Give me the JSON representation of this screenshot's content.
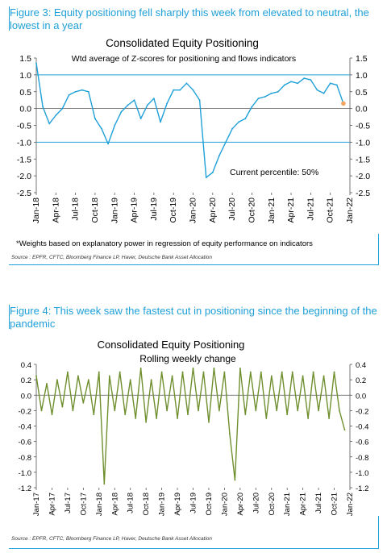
{
  "figure3": {
    "title": "Figure 3: Equity positioning fell sharply this week from elevated to neutral, the lowest in a year",
    "note": "*Weights based on explanatory power in regression of equity performance on indicators",
    "source": "Source : EPFR, CFTC, Bloomberg Finance LP, Haver, Deutsche Bank Asset Allocation"
  },
  "figure4": {
    "title": "Figure 4: This week saw the fastest cut in positioning since the beginning of the pandemic",
    "source": "Source : EPFR, CFTC, Bloomberg Finance LP, Haver, Deutsche Bank Asset Allocation"
  },
  "chart_data": [
    {
      "type": "line",
      "title": "Consolidated Equity Positioning",
      "subtitle": "Wtd average of Z-scores for positioning and flows indicators",
      "annotation": "Current percentile: 50%",
      "ylim": [
        -2.5,
        1.5
      ],
      "yticks": [
        1.5,
        1.0,
        0.5,
        0.0,
        -0.5,
        -1.0,
        -1.5,
        -2.0,
        -2.5
      ],
      "ytick_labels": [
        "1.5",
        "1.0",
        "0.5",
        "0.0",
        "-0.5",
        "-1.0",
        "-1.5",
        "-2.0",
        "-2.5"
      ],
      "reference_lines": [
        1.0,
        -1.0
      ],
      "xlim": [
        "2018-01",
        "2022-01"
      ],
      "xtick_labels": [
        "Jan-18",
        "Apr-18",
        "Jul-18",
        "Oct-18",
        "Jan-19",
        "Apr-19",
        "Jul-19",
        "Oct-19",
        "Jan-20",
        "Apr-20",
        "Jul-20",
        "Oct-20",
        "Jan-21",
        "Apr-21",
        "Jul-21",
        "Oct-21",
        "Jan-22"
      ],
      "line_color": "#1fa0d8",
      "marker_color": "#f4a460",
      "grid": false,
      "series": [
        {
          "x": [
            "2018-01",
            "2018-02",
            "2018-03",
            "2018-04",
            "2018-05",
            "2018-06",
            "2018-07",
            "2018-08",
            "2018-09",
            "2018-10",
            "2018-11",
            "2018-12",
            "2019-01",
            "2019-02",
            "2019-03",
            "2019-04",
            "2019-05",
            "2019-06",
            "2019-07",
            "2019-08",
            "2019-09",
            "2019-10",
            "2019-11",
            "2019-12",
            "2020-01",
            "2020-02",
            "2020-03",
            "2020-04",
            "2020-05",
            "2020-06",
            "2020-07",
            "2020-08",
            "2020-09",
            "2020-10",
            "2020-11",
            "2020-12",
            "2021-01",
            "2021-02",
            "2021-03",
            "2021-04",
            "2021-05",
            "2021-06",
            "2021-07",
            "2021-08",
            "2021-09",
            "2021-10",
            "2021-11",
            "2021-12"
          ],
          "values": [
            1.35,
            0.05,
            -0.45,
            -0.2,
            0.0,
            0.4,
            0.5,
            0.55,
            0.5,
            -0.3,
            -0.6,
            -1.05,
            -0.5,
            -0.1,
            0.1,
            0.25,
            -0.3,
            0.1,
            0.3,
            -0.4,
            0.15,
            0.55,
            0.55,
            0.75,
            0.55,
            0.25,
            -2.05,
            -1.9,
            -1.4,
            -1.0,
            -0.6,
            -0.4,
            -0.3,
            0.05,
            0.3,
            0.35,
            0.45,
            0.5,
            0.7,
            0.8,
            0.75,
            0.9,
            0.85,
            0.55,
            0.45,
            0.75,
            0.7,
            0.15
          ]
        }
      ]
    },
    {
      "type": "line",
      "title": "Consolidated Equity Positioning",
      "subtitle": "Rolling weekly change",
      "ylim": [
        -1.2,
        0.4
      ],
      "yticks": [
        0.4,
        0.2,
        0.0,
        -0.2,
        -0.4,
        -0.6,
        -0.8,
        -1.0,
        -1.2
      ],
      "ytick_labels": [
        "0.4",
        "0.2",
        "0.0",
        "-0.2",
        "-0.4",
        "-0.6",
        "-0.8",
        "-1.0",
        "-1.2"
      ],
      "xlim": [
        "2017-01",
        "2022-01"
      ],
      "xtick_labels": [
        "Jan-17",
        "Apr-17",
        "Jul-17",
        "Oct-17",
        "Jan-18",
        "Apr-18",
        "Jul-18",
        "Oct-18",
        "Jan-19",
        "Apr-19",
        "Jul-19",
        "Oct-19",
        "Jan-20",
        "Apr-20",
        "Jul-20",
        "Oct-20",
        "Jan-21",
        "Apr-21",
        "Jul-21",
        "Oct-21",
        "Jan-22"
      ],
      "line_color": "#6f8f2e",
      "grid": false,
      "series": [
        {
          "x": [
            "2017-01",
            "2017-02",
            "2017-03",
            "2017-04",
            "2017-05",
            "2017-06",
            "2017-07",
            "2017-08",
            "2017-09",
            "2017-10",
            "2017-11",
            "2017-12",
            "2018-01",
            "2018-02",
            "2018-03",
            "2018-04",
            "2018-05",
            "2018-06",
            "2018-07",
            "2018-08",
            "2018-09",
            "2018-10",
            "2018-11",
            "2018-12",
            "2019-01",
            "2019-02",
            "2019-03",
            "2019-04",
            "2019-05",
            "2019-06",
            "2019-07",
            "2019-08",
            "2019-09",
            "2019-10",
            "2019-11",
            "2019-12",
            "2020-01",
            "2020-02",
            "2020-03",
            "2020-04",
            "2020-05",
            "2020-06",
            "2020-07",
            "2020-08",
            "2020-09",
            "2020-10",
            "2020-11",
            "2020-12",
            "2021-01",
            "2021-02",
            "2021-03",
            "2021-04",
            "2021-05",
            "2021-06",
            "2021-07",
            "2021-08",
            "2021-09",
            "2021-10",
            "2021-11",
            "2021-12"
          ],
          "values": [
            0.25,
            -0.2,
            0.15,
            -0.25,
            0.2,
            -0.15,
            0.3,
            -0.2,
            0.25,
            -0.1,
            0.2,
            -0.25,
            0.3,
            -1.15,
            0.25,
            -0.2,
            0.3,
            -0.25,
            0.2,
            -0.3,
            0.35,
            -0.35,
            0.2,
            -0.3,
            0.3,
            -0.2,
            0.25,
            -0.3,
            0.3,
            -0.25,
            0.35,
            -0.2,
            0.3,
            -0.35,
            0.35,
            -0.2,
            0.3,
            -0.5,
            -1.1,
            0.35,
            -0.25,
            0.3,
            -0.2,
            0.3,
            -0.3,
            0.25,
            -0.2,
            0.3,
            -0.25,
            0.3,
            -0.2,
            0.25,
            -0.3,
            0.3,
            -0.2,
            0.25,
            -0.3,
            0.3,
            -0.2,
            -0.45
          ]
        }
      ]
    }
  ]
}
